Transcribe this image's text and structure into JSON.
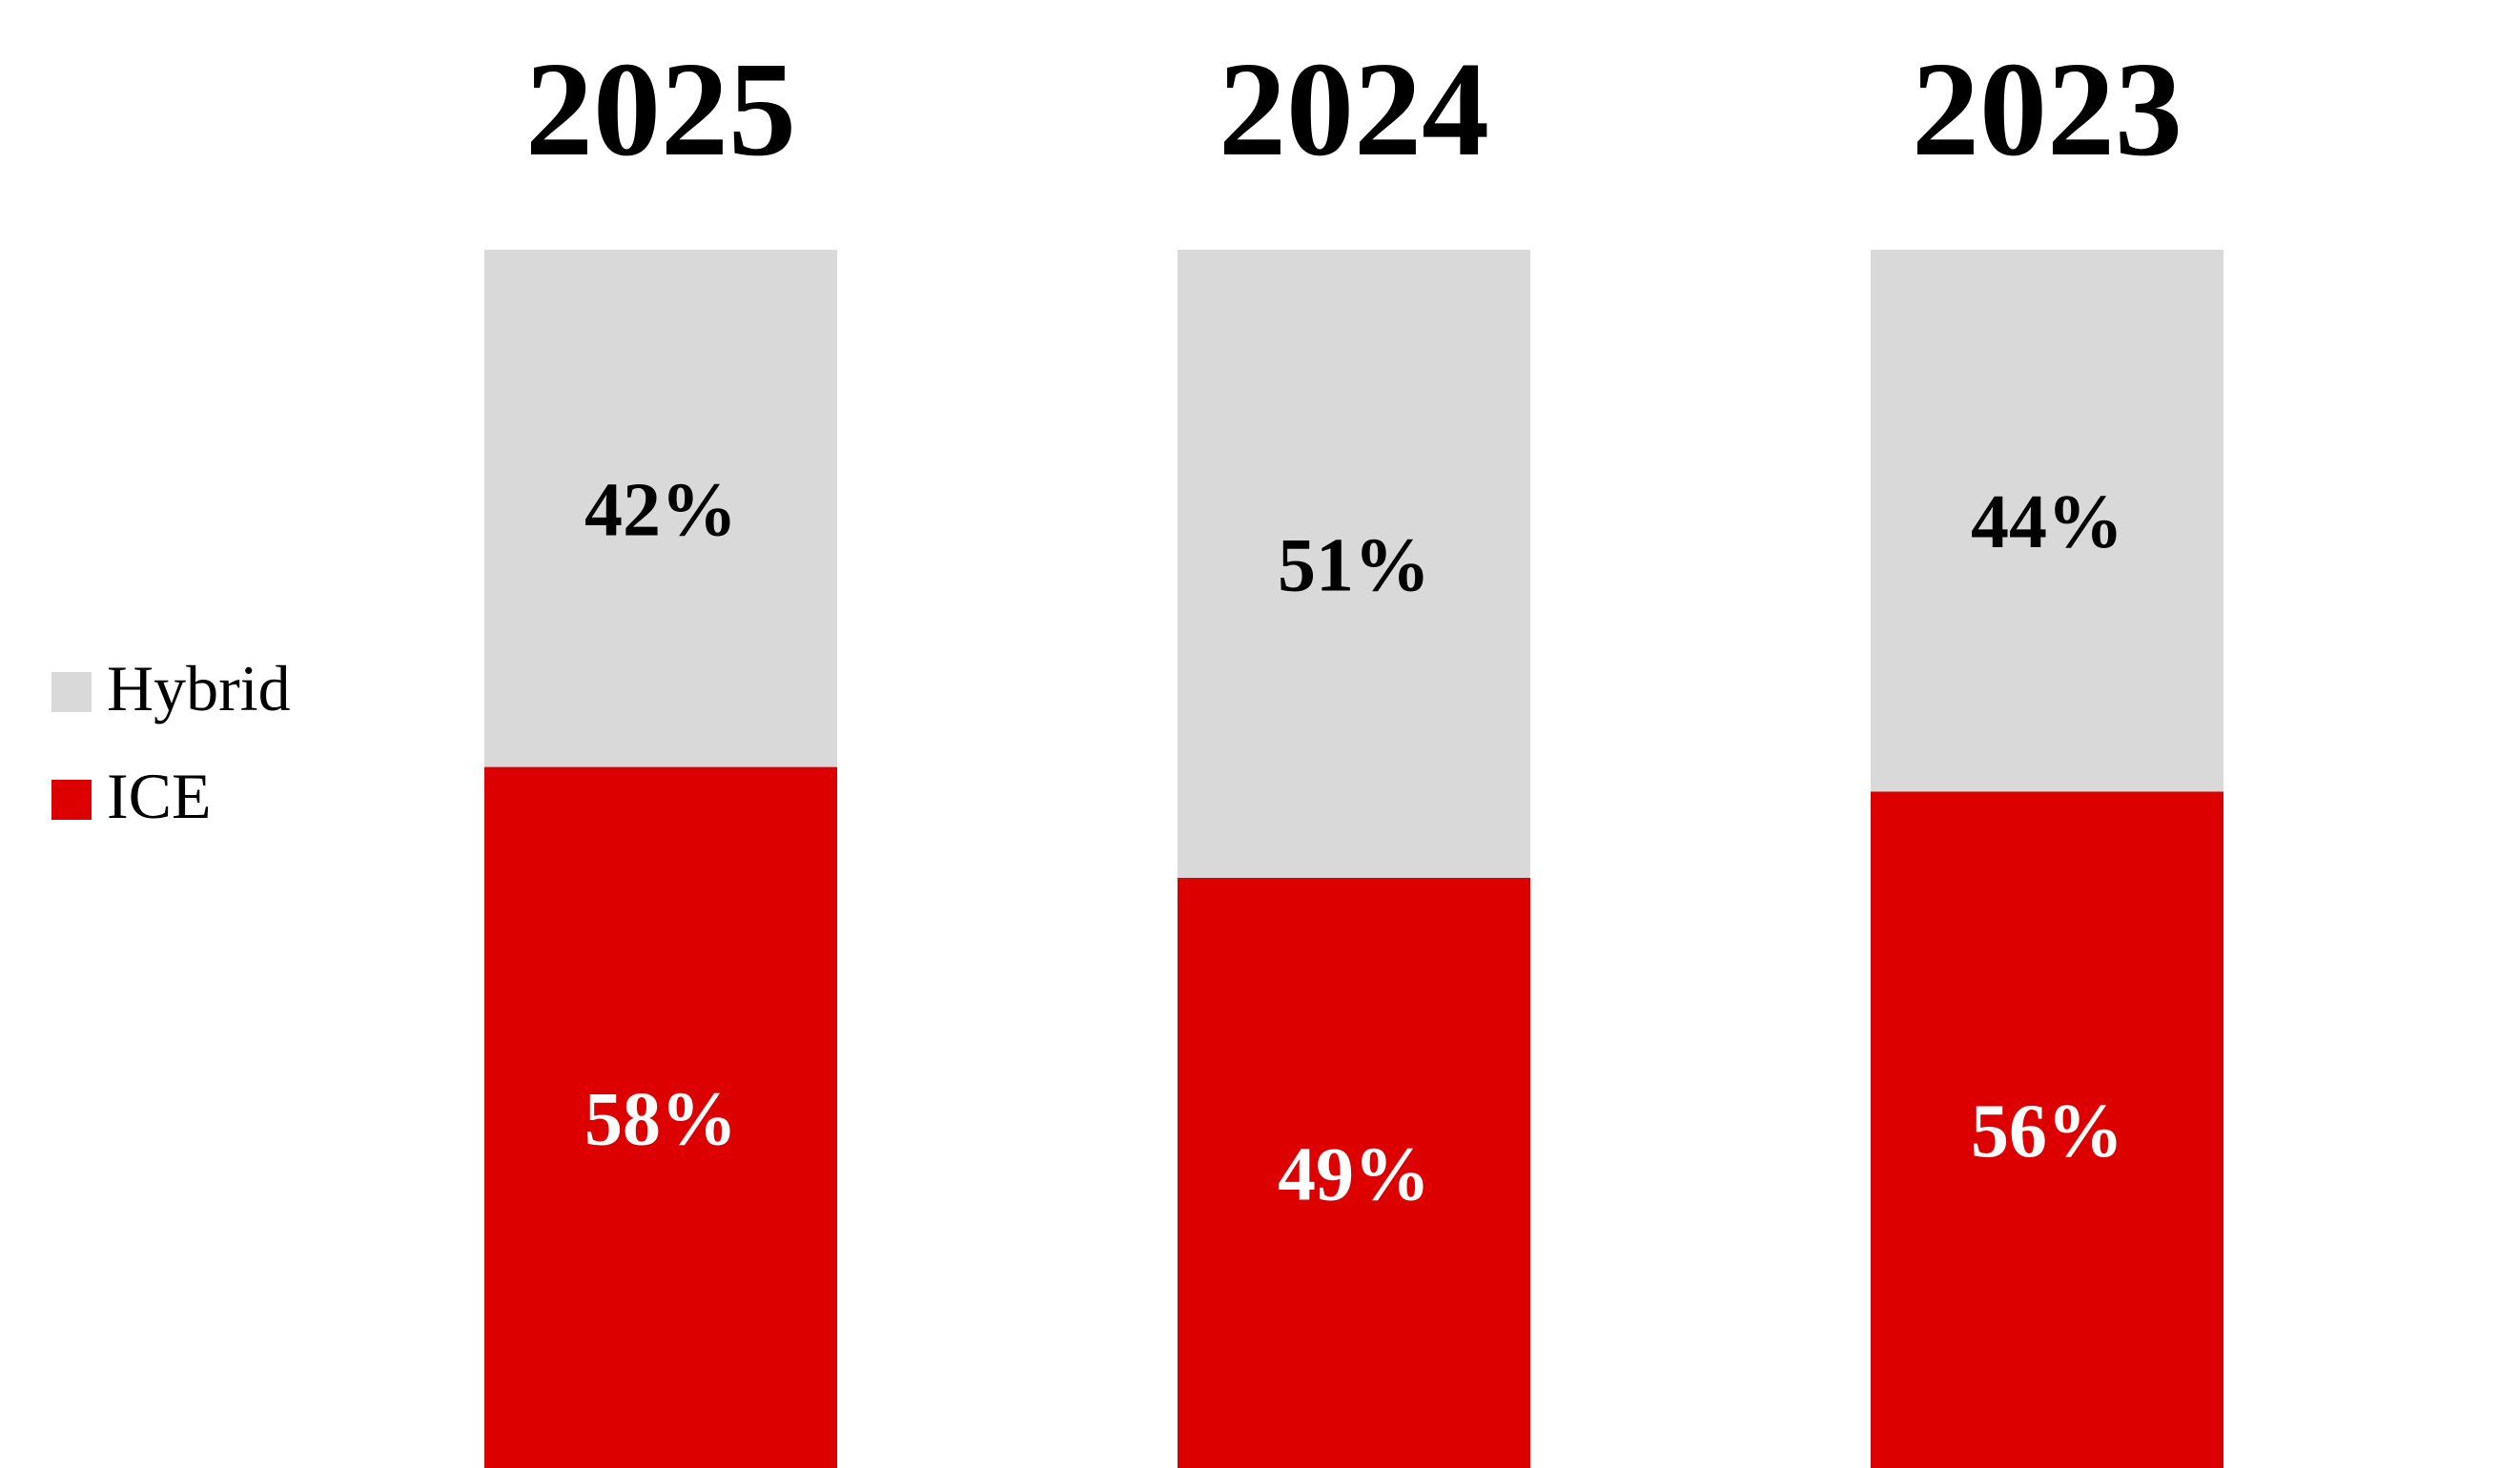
{
  "chart_data": {
    "type": "bar",
    "stacked": true,
    "normalized_percent": true,
    "categories": [
      "2025",
      "2024",
      "2023"
    ],
    "series": [
      {
        "name": "ICE",
        "values": [
          58,
          49,
          56
        ],
        "labels": [
          "58%",
          "49%",
          "56%"
        ],
        "color": "#dd0000",
        "label_color": "#ffffff"
      },
      {
        "name": "Hybrid",
        "values": [
          42,
          51,
          44
        ],
        "labels": [
          "42%",
          "51%",
          "44%"
        ],
        "color": "#d9d9d9",
        "label_color": "#000000"
      }
    ],
    "legend": {
      "position": "left",
      "items": [
        {
          "name": "Hybrid",
          "color": "#d9d9d9"
        },
        {
          "name": "ICE",
          "color": "#dd0000"
        }
      ]
    },
    "ylim": [
      0,
      100
    ],
    "grid": false
  }
}
